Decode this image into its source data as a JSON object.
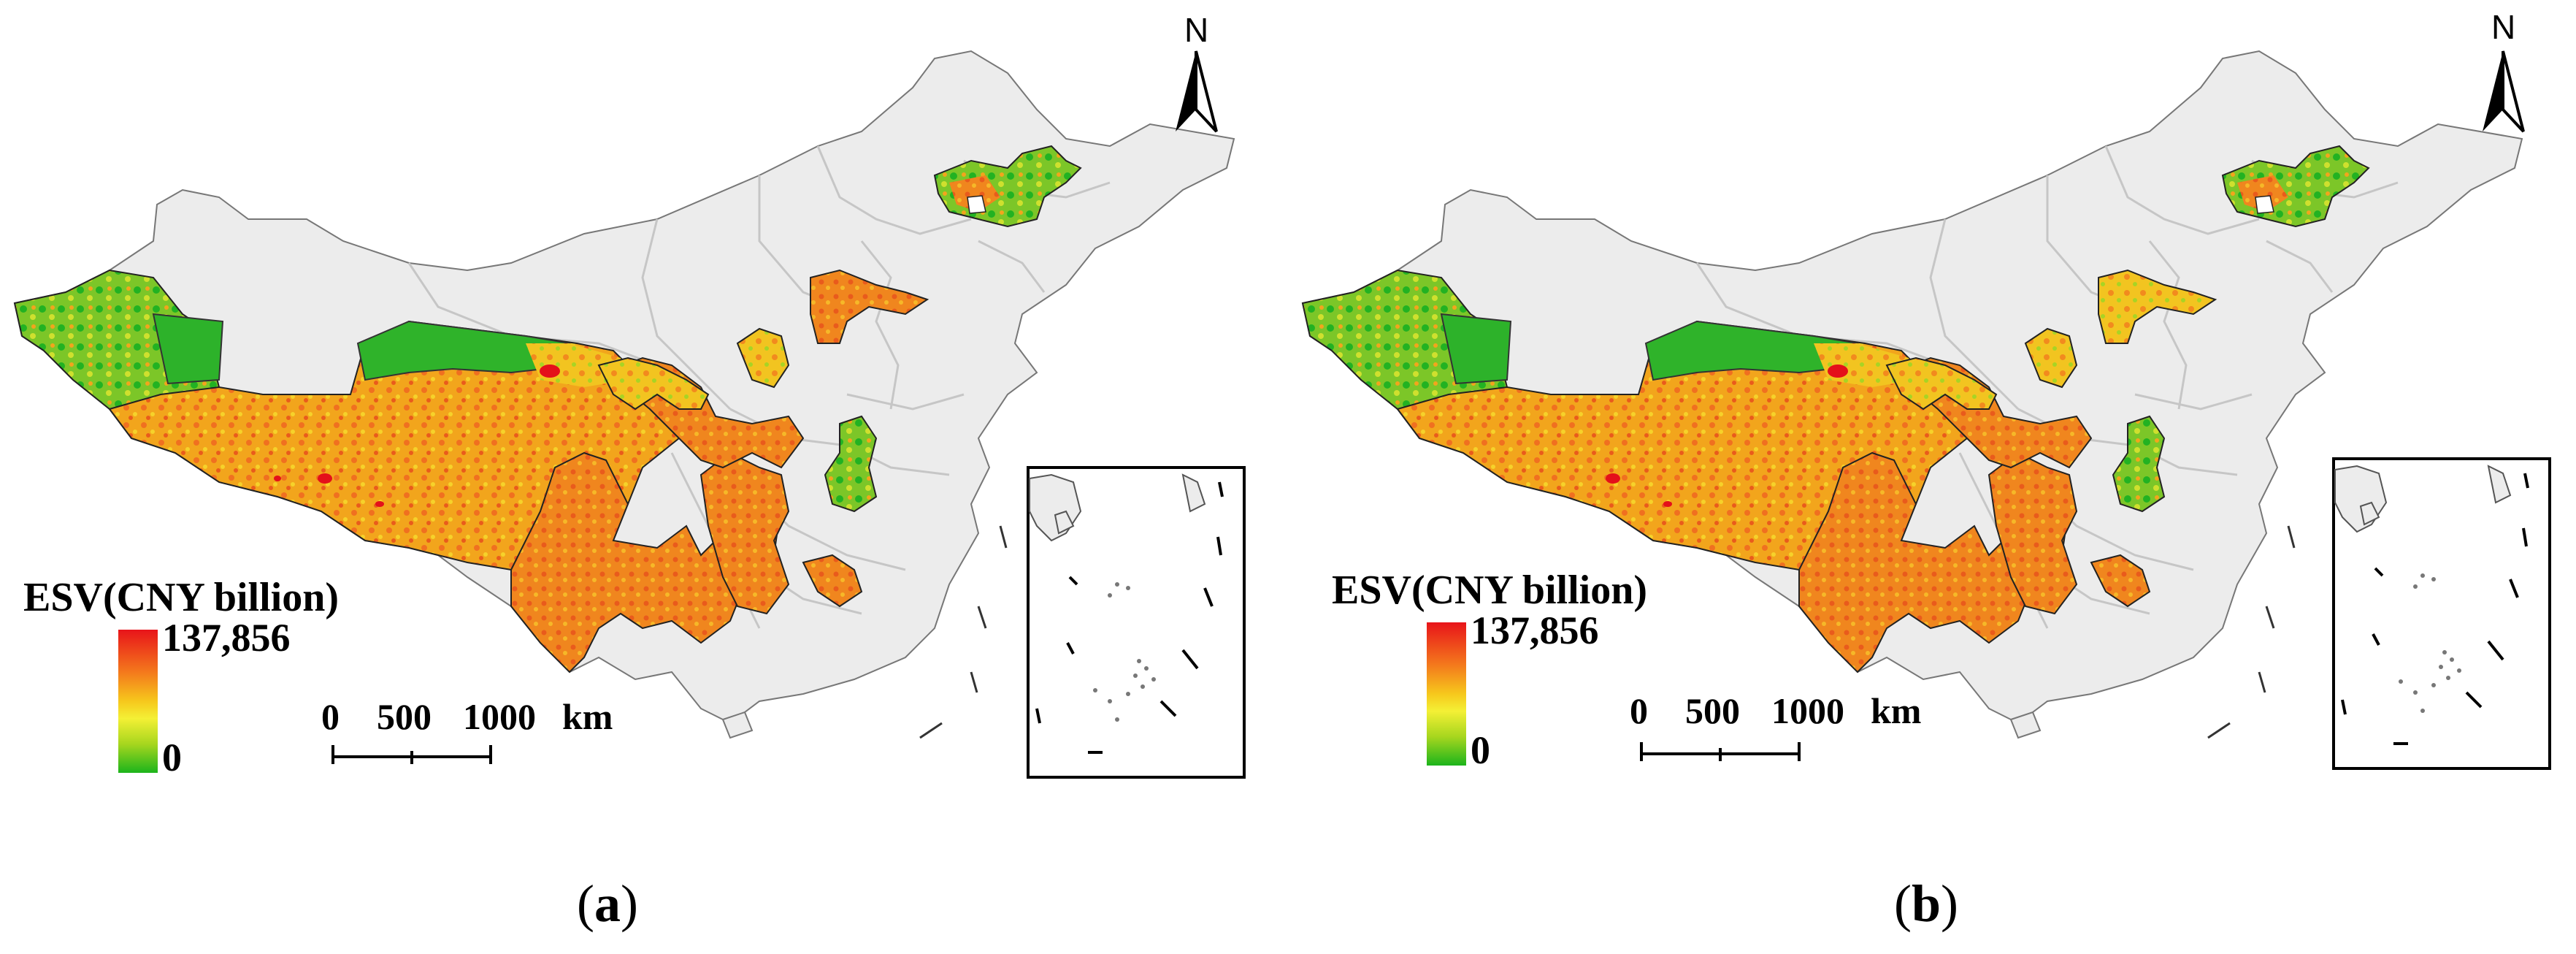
{
  "panels": [
    {
      "caption_paren_open": "(",
      "caption_letter": "a",
      "caption_paren_close": ")",
      "legend": {
        "title": "ESV(CNY billion)",
        "max_label": "137,856",
        "min_label": "0"
      },
      "scale_bar": {
        "labels": [
          "0",
          "500",
          "1000"
        ],
        "unit": "km"
      },
      "north_label": "N"
    },
    {
      "caption_paren_open": "(",
      "caption_letter": "b",
      "caption_paren_close": ")",
      "legend": {
        "title": "ESV(CNY billion)",
        "max_label": "137,856",
        "min_label": "0"
      },
      "scale_bar": {
        "labels": [
          "0",
          "500",
          "1000"
        ],
        "unit": "km"
      },
      "north_label": "N"
    }
  ],
  "colors": {
    "background_land": "#ececec",
    "province_border": "#c8c8c8",
    "legend_high": "#e8141a",
    "legend_mid": "#f6c81c",
    "legend_low": "#1cb41c"
  },
  "icons": [
    "north-arrow-icon"
  ]
}
